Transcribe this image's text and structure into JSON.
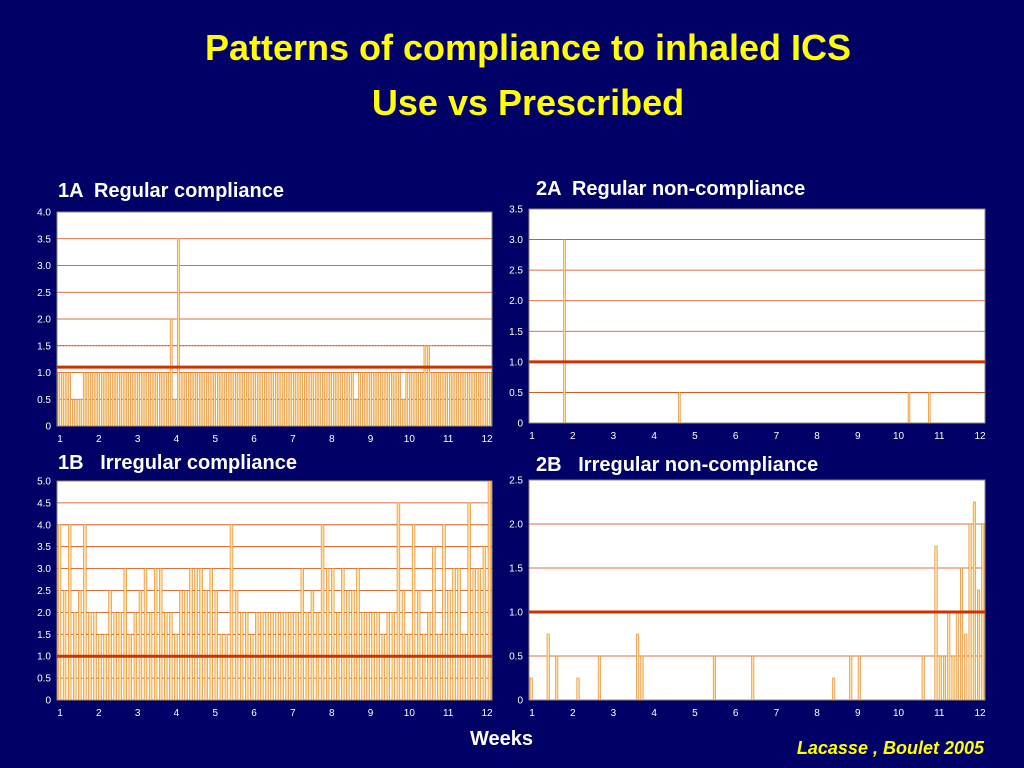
{
  "slide": {
    "title_line1": "Patterns of compliance to inhaled ICS",
    "title_line2": "Use vs Prescribed",
    "xlabel": "Weeks",
    "citation": "Lacasse , Boulet 2005"
  },
  "colors": {
    "background": "#000066",
    "title": "#ffff00",
    "bar_fill": "#ffe0a0",
    "bar_stroke": "#e08020",
    "reference_line": "#cc3300",
    "gridline": "#cc4400"
  },
  "chart_data": [
    {
      "id": "1A",
      "panel_title": "1A  Regular compliance",
      "type": "bar",
      "ylim": [
        0,
        4.0
      ],
      "yticks": [
        "0",
        "0.5",
        "1.0",
        "1.5",
        "2.0",
        "2.5",
        "3.0",
        "3.5",
        "4.0"
      ],
      "xticks": [
        "1",
        "2",
        "3",
        "4",
        "5",
        "6",
        "7",
        "8",
        "9",
        "10",
        "11",
        "12"
      ],
      "reference_line": 1.1,
      "dotted_line": 1.5,
      "values": [
        1,
        1,
        1,
        1,
        0.5,
        0.5,
        0.5,
        1,
        1,
        1,
        1,
        1,
        1,
        1,
        1,
        1,
        1,
        1,
        1,
        1,
        1,
        1,
        1,
        1,
        1,
        1,
        1,
        1,
        1,
        1,
        1,
        2,
        0.5,
        3.5,
        1,
        1,
        1,
        1,
        1,
        1,
        1,
        1,
        1,
        1,
        1,
        1,
        1,
        1,
        1,
        1,
        1,
        1,
        1,
        1,
        1,
        1,
        1,
        1,
        1,
        1,
        1,
        1,
        1,
        1,
        1,
        1,
        1,
        1,
        1,
        1,
        1,
        1,
        1,
        1,
        1,
        1,
        1,
        1,
        1,
        1,
        1,
        1,
        0.5,
        1,
        1,
        1,
        1,
        1,
        1,
        1,
        1,
        1,
        1,
        1,
        1,
        0.5,
        1,
        1,
        1,
        1,
        1,
        1.5,
        1.5,
        1,
        1,
        1,
        1,
        1,
        1,
        1,
        1,
        1,
        1,
        1,
        1,
        1,
        1,
        1,
        1,
        1
      ]
    },
    {
      "id": "2A",
      "panel_title": "2A  Regular non-compliance",
      "type": "bar",
      "ylim": [
        0,
        3.5
      ],
      "yticks": [
        "0",
        "0.5",
        "1.0",
        "1.5",
        "2.0",
        "2.5",
        "3.0",
        "3.5"
      ],
      "xticks": [
        "1",
        "2",
        "3",
        "4",
        "5",
        "6",
        "7",
        "8",
        "9",
        "10",
        "11",
        "12"
      ],
      "reference_line": 1.0,
      "values": [
        0,
        0,
        0,
        0,
        0,
        0,
        0,
        0,
        0,
        0,
        3,
        0,
        0,
        0,
        0,
        0,
        0,
        0,
        0,
        0,
        0,
        0,
        0,
        0,
        0,
        0,
        0,
        0,
        0,
        0,
        0,
        0,
        0,
        0,
        0,
        0,
        0,
        0,
        0,
        0,
        0,
        0,
        0,
        0,
        0.5,
        0,
        0,
        0,
        0,
        0,
        0,
        0,
        0,
        0,
        0,
        0,
        0,
        0,
        0,
        0,
        0,
        0,
        0,
        0,
        0,
        0,
        0,
        0,
        0,
        0,
        0,
        0,
        0,
        0,
        0,
        0,
        0,
        0,
        0,
        0,
        0,
        0,
        0,
        0,
        0,
        0,
        0,
        0,
        0,
        0,
        0,
        0,
        0,
        0,
        0,
        0,
        0,
        0,
        0,
        0,
        0,
        0,
        0,
        0,
        0,
        0,
        0,
        0,
        0,
        0,
        0,
        0,
        0.5,
        0,
        0,
        0,
        0,
        0,
        0.5,
        0,
        0,
        0,
        0,
        0,
        0,
        0,
        0,
        0,
        0,
        0,
        0,
        0,
        0,
        0,
        0
      ]
    },
    {
      "id": "1B",
      "panel_title": "1B   Irregular compliance",
      "type": "bar",
      "ylim": [
        0,
        5.0
      ],
      "yticks": [
        "0",
        "0.5",
        "1.0",
        "1.5",
        "2.0",
        "2.5",
        "3.0",
        "3.5",
        "4.0",
        "4.5",
        "5.0"
      ],
      "xticks": [
        "1",
        "2",
        "3",
        "4",
        "5",
        "6",
        "7",
        "8",
        "9",
        "10",
        "11",
        "12"
      ],
      "reference_line": 1.0,
      "values": [
        4,
        2.5,
        4,
        2,
        2.5,
        4,
        2,
        2,
        1.5,
        1.5,
        2.5,
        2,
        2,
        3,
        1.5,
        2,
        2.5,
        3,
        2,
        3,
        3,
        2,
        2,
        1.5,
        2.5,
        2.5,
        3,
        3,
        3,
        2.5,
        3,
        2.5,
        1.5,
        1.5,
        4,
        2.5,
        2,
        2,
        1.5,
        2,
        2,
        2,
        2,
        2,
        2,
        2,
        2,
        2,
        3,
        2,
        2.5,
        2,
        4,
        3,
        3,
        2,
        3,
        2.5,
        2.5,
        3,
        2,
        2,
        2,
        2,
        1.5,
        2,
        2,
        4.5,
        2.5,
        1.5,
        4,
        2.5,
        1.5,
        2,
        3.5,
        1.5,
        4,
        2.5,
        3,
        3,
        1.5,
        4.5,
        3,
        3,
        3.5,
        5
      ]
    },
    {
      "id": "2B",
      "panel_title": "2B   Irregular non-compliance",
      "type": "bar",
      "ylim": [
        0,
        2.5
      ],
      "yticks": [
        "0",
        "0.5",
        "1.0",
        "1.5",
        "2.0",
        "2.5"
      ],
      "xticks": [
        "1",
        "2",
        "3",
        "4",
        "5",
        "6",
        "7",
        "8",
        "9",
        "10",
        "11",
        "12"
      ],
      "reference_line": 1.0,
      "values": [
        0.25,
        0,
        0,
        0,
        0.75,
        0,
        0.5,
        0,
        0,
        0,
        0,
        0.25,
        0,
        0,
        0,
        0,
        0.5,
        0,
        0,
        0,
        0,
        0,
        0,
        0,
        0,
        0.75,
        0.5,
        0,
        0,
        0,
        0,
        0,
        0,
        0,
        0,
        0,
        0,
        0,
        0,
        0,
        0,
        0,
        0,
        0.5,
        0,
        0,
        0,
        0,
        0,
        0,
        0,
        0,
        0.5,
        0,
        0,
        0,
        0,
        0,
        0,
        0,
        0,
        0,
        0,
        0,
        0,
        0,
        0,
        0,
        0,
        0,
        0,
        0.25,
        0,
        0,
        0,
        0.5,
        0,
        0.5,
        0,
        0,
        0,
        0,
        0,
        0,
        0,
        0,
        0,
        0,
        0,
        0,
        0,
        0,
        0.5,
        0,
        0,
        1.75,
        0.5,
        0.5,
        1,
        0.5,
        1,
        1.5,
        0.75,
        2,
        2.25,
        1.25,
        2
      ]
    }
  ]
}
